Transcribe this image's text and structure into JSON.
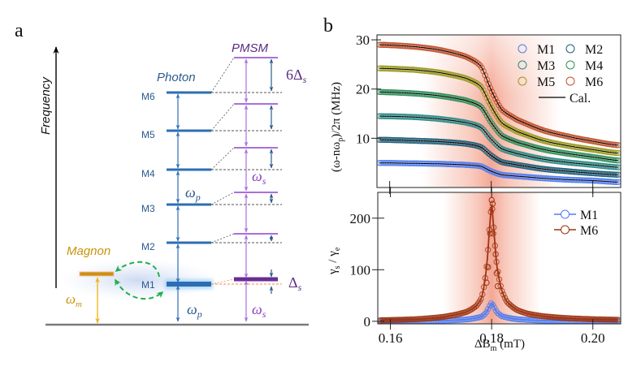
{
  "panel_a": {
    "label": "a",
    "frequency_axis_label": "Frequency",
    "photon_label": "Photon",
    "pmsm_label": "PMSM",
    "magnon_label": "Magnon",
    "mode_labels": [
      "M1",
      "M2",
      "M3",
      "M4",
      "M5",
      "M6"
    ],
    "omega_p": "ω",
    "omega_p_sub": "p",
    "omega_s": "ω",
    "omega_s_sub": "s",
    "omega_m": "ω",
    "omega_m_sub": "m",
    "delta_s": "Δ",
    "delta_s_sub": "s",
    "six_delta_s": "6Δ",
    "six_delta_s_sub": "s",
    "colors": {
      "photon": "#2e6db4",
      "pmsm": "#a970dc",
      "pmsm_m1": "#6a2c94",
      "magnon": "#c8930a",
      "magnon_arrow": "#f2b51c",
      "coupling": "#1fb04a",
      "label_purple": "#5b2a82",
      "label_blue": "#2a5a8e",
      "ground": "#7a7a7a"
    }
  },
  "panel_b": {
    "label": "b"
  },
  "chart_data": [
    {
      "type": "line",
      "title": "",
      "xlabel": "ΔB_m (mT)",
      "ylabel": "(ω-nω_p)/2π (MHz)",
      "ylabel_main": "(ω-nω",
      "ylabel_sub": "p",
      "ylabel_tail": ")/2π (MHz)",
      "xlim": [
        0.1575,
        0.2055
      ],
      "ylim": [
        0,
        31
      ],
      "yticks": [
        10,
        20,
        30
      ],
      "ytick_labels": [
        "10",
        "20",
        "30"
      ],
      "xticks": [
        0.16,
        0.18,
        0.2
      ],
      "legend_position": "top-right",
      "legend": [
        "M1",
        "M2",
        "M3",
        "M4",
        "M5",
        "M6",
        "Cal."
      ],
      "highlight_center": 0.18,
      "series": [
        {
          "name": "M1",
          "color": "#4f7cf0",
          "x": [
            0.158,
            0.165,
            0.17,
            0.175,
            0.178,
            0.18,
            0.182,
            0.185,
            0.19,
            0.195,
            0.2,
            0.205
          ],
          "values": [
            5.0,
            4.9,
            4.8,
            4.6,
            4.3,
            3.3,
            2.6,
            2.3,
            1.9,
            1.6,
            1.4,
            1.1
          ]
        },
        {
          "name": "M2",
          "color": "#1f5f7a",
          "x": [
            0.158,
            0.165,
            0.17,
            0.175,
            0.178,
            0.18,
            0.182,
            0.185,
            0.19,
            0.195,
            0.2,
            0.205
          ],
          "values": [
            9.7,
            9.5,
            9.3,
            8.9,
            8.2,
            6.5,
            5.2,
            4.6,
            3.8,
            3.3,
            2.9,
            2.6
          ]
        },
        {
          "name": "M3",
          "color": "#2a8a86",
          "x": [
            0.158,
            0.165,
            0.17,
            0.175,
            0.178,
            0.18,
            0.182,
            0.185,
            0.19,
            0.195,
            0.2,
            0.205
          ],
          "values": [
            14.5,
            14.3,
            13.9,
            13.2,
            12.2,
            9.8,
            7.9,
            6.9,
            5.8,
            5.1,
            4.6,
            4.1
          ]
        },
        {
          "name": "M4",
          "color": "#2e8f5a",
          "x": [
            0.158,
            0.165,
            0.17,
            0.175,
            0.178,
            0.18,
            0.182,
            0.185,
            0.19,
            0.195,
            0.2,
            0.205
          ],
          "values": [
            19.4,
            19.1,
            18.6,
            17.7,
            16.4,
            13.2,
            10.6,
            9.2,
            7.8,
            6.9,
            6.2,
            5.5
          ]
        },
        {
          "name": "M5",
          "color": "#9a9a1e",
          "x": [
            0.158,
            0.165,
            0.17,
            0.175,
            0.178,
            0.18,
            0.182,
            0.185,
            0.19,
            0.195,
            0.2,
            0.205
          ],
          "values": [
            24.2,
            23.9,
            23.3,
            22.2,
            20.5,
            16.5,
            13.2,
            11.4,
            9.6,
            8.5,
            7.7,
            7.0
          ]
        },
        {
          "name": "M6",
          "color": "#c0502a",
          "x": [
            0.158,
            0.165,
            0.17,
            0.175,
            0.178,
            0.18,
            0.182,
            0.185,
            0.19,
            0.195,
            0.2,
            0.205
          ],
          "values": [
            29.0,
            28.6,
            27.9,
            26.6,
            24.6,
            19.8,
            15.9,
            13.8,
            11.7,
            10.4,
            9.4,
            8.6
          ]
        }
      ]
    },
    {
      "type": "line",
      "title": "",
      "xlabel": "ΔB_m (mT)",
      "xlabel_main": "ΔB",
      "xlabel_sub": "m",
      "xlabel_tail": " (mT)",
      "ylabel": "γ_s / γ_e",
      "ylabel_main": "γ",
      "ylabel_sub1": "s",
      "ylabel_mid": " / γ",
      "ylabel_sub2": "e",
      "xlim": [
        0.1575,
        0.2055
      ],
      "ylim": [
        -5,
        250
      ],
      "xticks": [
        0.16,
        0.18,
        0.2
      ],
      "xtick_labels": [
        "0.16",
        "0.18",
        "0.20"
      ],
      "yticks": [
        0,
        100,
        200
      ],
      "ytick_labels": [
        "0",
        "100",
        "200"
      ],
      "legend_position": "top-right",
      "legend": [
        "M1",
        "M6"
      ],
      "highlight_center": 0.18,
      "series": [
        {
          "name": "M1",
          "color": "#4f7cf0",
          "x": [
            0.158,
            0.165,
            0.17,
            0.175,
            0.178,
            0.179,
            0.1795,
            0.18,
            0.1805,
            0.181,
            0.182,
            0.185,
            0.19,
            0.195,
            0.2,
            0.205
          ],
          "values": [
            0.3,
            0.6,
            1.2,
            3.5,
            9,
            18,
            28,
            36,
            28,
            18,
            10,
            4,
            1.5,
            0.8,
            0.5,
            0.3
          ]
        },
        {
          "name": "M6",
          "color": "#9e3412",
          "x": [
            0.158,
            0.165,
            0.17,
            0.173,
            0.175,
            0.177,
            0.178,
            0.179,
            0.1795,
            0.18,
            0.1805,
            0.181,
            0.182,
            0.183,
            0.185,
            0.187,
            0.19,
            0.195,
            0.2,
            0.205
          ],
          "values": [
            2,
            4,
            8,
            13,
            18,
            30,
            45,
            105,
            170,
            235,
            170,
            110,
            60,
            38,
            22,
            15,
            10,
            6,
            4,
            3
          ]
        }
      ]
    }
  ]
}
